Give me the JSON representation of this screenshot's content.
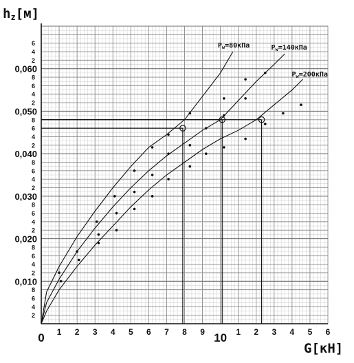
{
  "chart_data": {
    "type": "line",
    "ylabel": "hz[м]",
    "xlabel": "G[кН]",
    "xlim": [
      0,
      16
    ],
    "ylim": [
      0,
      0.07
    ],
    "grid": true,
    "y_major_ticks": [
      {
        "value": 0.01,
        "label": "0,010"
      },
      {
        "value": 0.02,
        "label": "0,020"
      },
      {
        "value": 0.03,
        "label": "0,030"
      },
      {
        "value": 0.04,
        "label": "0,040"
      },
      {
        "value": 0.05,
        "label": "0,050"
      },
      {
        "value": 0.06,
        "label": "0,060"
      }
    ],
    "y_minor_ticks": [
      {
        "value": 0.002,
        "label": "2"
      },
      {
        "value": 0.004,
        "label": "4"
      },
      {
        "value": 0.006,
        "label": "6"
      },
      {
        "value": 0.008,
        "label": "8"
      },
      {
        "value": 0.012,
        "label": "2"
      },
      {
        "value": 0.014,
        "label": "4"
      },
      {
        "value": 0.016,
        "label": "6"
      },
      {
        "value": 0.018,
        "label": "8"
      },
      {
        "value": 0.022,
        "label": "2"
      },
      {
        "value": 0.024,
        "label": "4"
      },
      {
        "value": 0.026,
        "label": "6"
      },
      {
        "value": 0.028,
        "label": "8"
      },
      {
        "value": 0.032,
        "label": "2"
      },
      {
        "value": 0.034,
        "label": "4"
      },
      {
        "value": 0.036,
        "label": "6"
      },
      {
        "value": 0.038,
        "label": "8"
      },
      {
        "value": 0.042,
        "label": "2"
      },
      {
        "value": 0.044,
        "label": "4"
      },
      {
        "value": 0.046,
        "label": "6"
      },
      {
        "value": 0.048,
        "label": "8"
      },
      {
        "value": 0.052,
        "label": "2"
      },
      {
        "value": 0.054,
        "label": "4"
      },
      {
        "value": 0.056,
        "label": "6"
      },
      {
        "value": 0.058,
        "label": "8"
      },
      {
        "value": 0.062,
        "label": "2"
      },
      {
        "value": 0.064,
        "label": "4"
      },
      {
        "value": 0.066,
        "label": "6"
      }
    ],
    "x_ticks": [
      {
        "value": 0,
        "label": "0",
        "big": true
      },
      {
        "value": 1,
        "label": "1"
      },
      {
        "value": 2,
        "label": "2"
      },
      {
        "value": 3,
        "label": "3"
      },
      {
        "value": 4,
        "label": "4"
      },
      {
        "value": 5,
        "label": "5"
      },
      {
        "value": 6,
        "label": "6"
      },
      {
        "value": 7,
        "label": "7"
      },
      {
        "value": 8,
        "label": "8"
      },
      {
        "value": 9,
        "label": "9"
      },
      {
        "value": 10,
        "label": "10",
        "big": true
      },
      {
        "value": 11,
        "label": "1"
      },
      {
        "value": 12,
        "label": "2"
      },
      {
        "value": 13,
        "label": "3"
      },
      {
        "value": 14,
        "label": "4"
      },
      {
        "value": 15,
        "label": "5"
      },
      {
        "value": 16,
        "label": "6"
      }
    ],
    "series": [
      {
        "name": "Pw=80кПа",
        "curve": [
          [
            0,
            0
          ],
          [
            0.3,
            0.0075
          ],
          [
            1,
            0.0135
          ],
          [
            2,
            0.0205
          ],
          [
            3,
            0.0265
          ],
          [
            4,
            0.032
          ],
          [
            5,
            0.037
          ],
          [
            6,
            0.0415
          ],
          [
            7,
            0.0445
          ],
          [
            8,
            0.048
          ],
          [
            9,
            0.0535
          ],
          [
            10,
            0.059
          ],
          [
            10.7,
            0.064
          ]
        ],
        "points": [
          [
            1,
            0.012
          ],
          [
            2,
            0.017
          ],
          [
            3.1,
            0.024
          ],
          [
            4.1,
            0.03
          ],
          [
            5.2,
            0.036
          ],
          [
            6.2,
            0.0415
          ],
          [
            7.1,
            0.0445
          ],
          [
            8.3,
            0.0495
          ]
        ],
        "marker": [
          7.9,
          0.046
        ]
      },
      {
        "name": "Pw=140кПа",
        "curve": [
          [
            0,
            0
          ],
          [
            0.3,
            0.005
          ],
          [
            1,
            0.0105
          ],
          [
            2,
            0.017
          ],
          [
            3,
            0.0225
          ],
          [
            4,
            0.0275
          ],
          [
            5,
            0.032
          ],
          [
            6,
            0.036
          ],
          [
            7,
            0.0395
          ],
          [
            8,
            0.0425
          ],
          [
            9,
            0.0455
          ],
          [
            10,
            0.048
          ],
          [
            11,
            0.0525
          ],
          [
            12,
            0.057
          ],
          [
            13,
            0.061
          ],
          [
            13.6,
            0.0635
          ]
        ],
        "points": [
          [
            1.1,
            0.01
          ],
          [
            2.1,
            0.015
          ],
          [
            3.2,
            0.021
          ],
          [
            4.2,
            0.026
          ],
          [
            5.2,
            0.031
          ],
          [
            6.2,
            0.035
          ],
          [
            7.1,
            0.04
          ],
          [
            8.3,
            0.042
          ],
          [
            9.2,
            0.046
          ],
          [
            10.2,
            0.049
          ],
          [
            10.2,
            0.053
          ],
          [
            11.4,
            0.053
          ],
          [
            11.4,
            0.0575
          ],
          [
            12.5,
            0.059
          ]
        ],
        "marker": [
          10.1,
          0.048
        ]
      },
      {
        "name": "Pw=200кПа",
        "curve": [
          [
            0,
            0
          ],
          [
            0.3,
            0.003
          ],
          [
            1,
            0.008
          ],
          [
            2,
            0.0135
          ],
          [
            3,
            0.0185
          ],
          [
            4,
            0.023
          ],
          [
            5,
            0.0275
          ],
          [
            6,
            0.0315
          ],
          [
            7,
            0.035
          ],
          [
            8,
            0.038
          ],
          [
            9,
            0.041
          ],
          [
            10,
            0.0435
          ],
          [
            11,
            0.0455
          ],
          [
            12,
            0.048
          ],
          [
            13,
            0.0515
          ],
          [
            14,
            0.055
          ],
          [
            14.6,
            0.0575
          ]
        ],
        "points": [
          [
            3.2,
            0.019
          ],
          [
            4.2,
            0.022
          ],
          [
            5.2,
            0.027
          ],
          [
            6.2,
            0.03
          ],
          [
            7.1,
            0.034
          ],
          [
            8.3,
            0.037
          ],
          [
            9.2,
            0.04
          ],
          [
            10.2,
            0.0415
          ],
          [
            11.4,
            0.0435
          ],
          [
            12.5,
            0.047
          ],
          [
            13.5,
            0.0495
          ],
          [
            14.5,
            0.0515
          ]
        ],
        "marker": [
          12.3,
          0.048
        ]
      }
    ]
  }
}
